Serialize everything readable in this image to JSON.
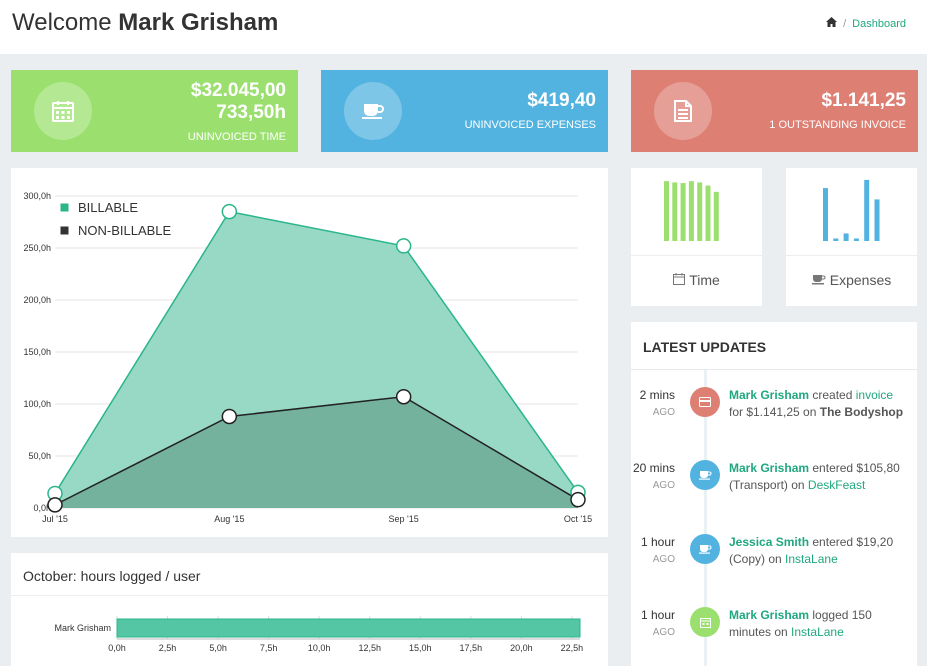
{
  "header": {
    "welcome_prefix": "Welcome",
    "user_name": "Mark Grisham",
    "breadcrumb": {
      "home_icon": "home-icon",
      "separator": "/",
      "current": "Dashboard"
    }
  },
  "stats": [
    {
      "icon": "calendar-icon",
      "values": [
        "$32.045,00",
        "733,50h"
      ],
      "label": "UNINVOICED TIME",
      "color": "#9be06f"
    },
    {
      "icon": "cup-icon",
      "values": [
        "$419,40"
      ],
      "label": "UNINVOICED EXPENSES",
      "color": "#52b3e0"
    },
    {
      "icon": "document-icon",
      "values": [
        "$1.141,25"
      ],
      "label": "1 OUTSTANDING INVOICE",
      "color": "#de7f74"
    }
  ],
  "mini_charts": {
    "time": {
      "label": "Time",
      "icon": "calendar-icon",
      "color": "#9be06f",
      "bars": [
        0.95,
        0.93,
        0.92,
        0.95,
        0.93,
        0.88,
        0.78
      ]
    },
    "expenses": {
      "label": "Expenses",
      "icon": "cup-icon",
      "color": "#52b3e0",
      "bars": [
        0.84,
        0.04,
        0.12,
        0.04,
        0.97,
        0.66
      ]
    }
  },
  "chart_data": {
    "type": "area",
    "categories": [
      "Jul '15",
      "Aug '15",
      "Sep '15",
      "Oct '15"
    ],
    "series": [
      {
        "name": "BILLABLE",
        "values": [
          14,
          285,
          252,
          15
        ],
        "color": "#6fcfb5"
      },
      {
        "name": "NON-BILLABLE",
        "values": [
          3,
          88,
          107,
          8
        ],
        "color": "#2d2d2d"
      }
    ],
    "ylim": [
      0,
      300
    ],
    "yticks": [
      "0,0h",
      "50,0h",
      "100,0h",
      "150,0h",
      "200,0h",
      "250,0h",
      "300,0h"
    ],
    "grid": true,
    "legend_position": "top-left"
  },
  "hours_chart": {
    "title": "October: hours logged / user",
    "type": "bar",
    "categories": [
      "Mark Grisham"
    ],
    "values": [
      22.9
    ],
    "xlim": [
      0,
      22.9
    ],
    "xticks": [
      "0,0h",
      "2,5h",
      "5,0h",
      "7,5h",
      "10,0h",
      "12,5h",
      "15,0h",
      "17,5h",
      "20,0h",
      "22,5h"
    ]
  },
  "updates": {
    "title": "LATEST UPDATES",
    "items": [
      {
        "time": "2 mins",
        "ago": "AGO",
        "color": "#de7f74",
        "icon": "credit-card-icon",
        "parts": [
          [
            "g",
            "Mark Grisham"
          ],
          [
            "t",
            " created "
          ],
          [
            "gl",
            "invoice"
          ],
          [
            "t",
            " for $1.141,25 on "
          ],
          [
            "b",
            "The Bodyshop"
          ]
        ]
      },
      {
        "time": "20 mins",
        "ago": "AGO",
        "color": "#52b3e0",
        "icon": "cup-icon",
        "parts": [
          [
            "g",
            "Mark Grisham"
          ],
          [
            "t",
            " entered $105,80 (Transport) on "
          ],
          [
            "gl",
            "DeskFeast"
          ]
        ]
      },
      {
        "time": "1 hour",
        "ago": "AGO",
        "color": "#52b3e0",
        "icon": "cup-icon",
        "parts": [
          [
            "g",
            "Jessica Smith"
          ],
          [
            "t",
            " entered $19,20 (Copy) on "
          ],
          [
            "gl",
            "InstaLane"
          ]
        ]
      },
      {
        "time": "1 hour",
        "ago": "AGO",
        "color": "#9be06f",
        "icon": "calendar-icon",
        "parts": [
          [
            "g",
            "Mark Grisham"
          ],
          [
            "t",
            " logged 150 minutes on "
          ],
          [
            "gl",
            "InstaLane"
          ]
        ]
      }
    ]
  }
}
